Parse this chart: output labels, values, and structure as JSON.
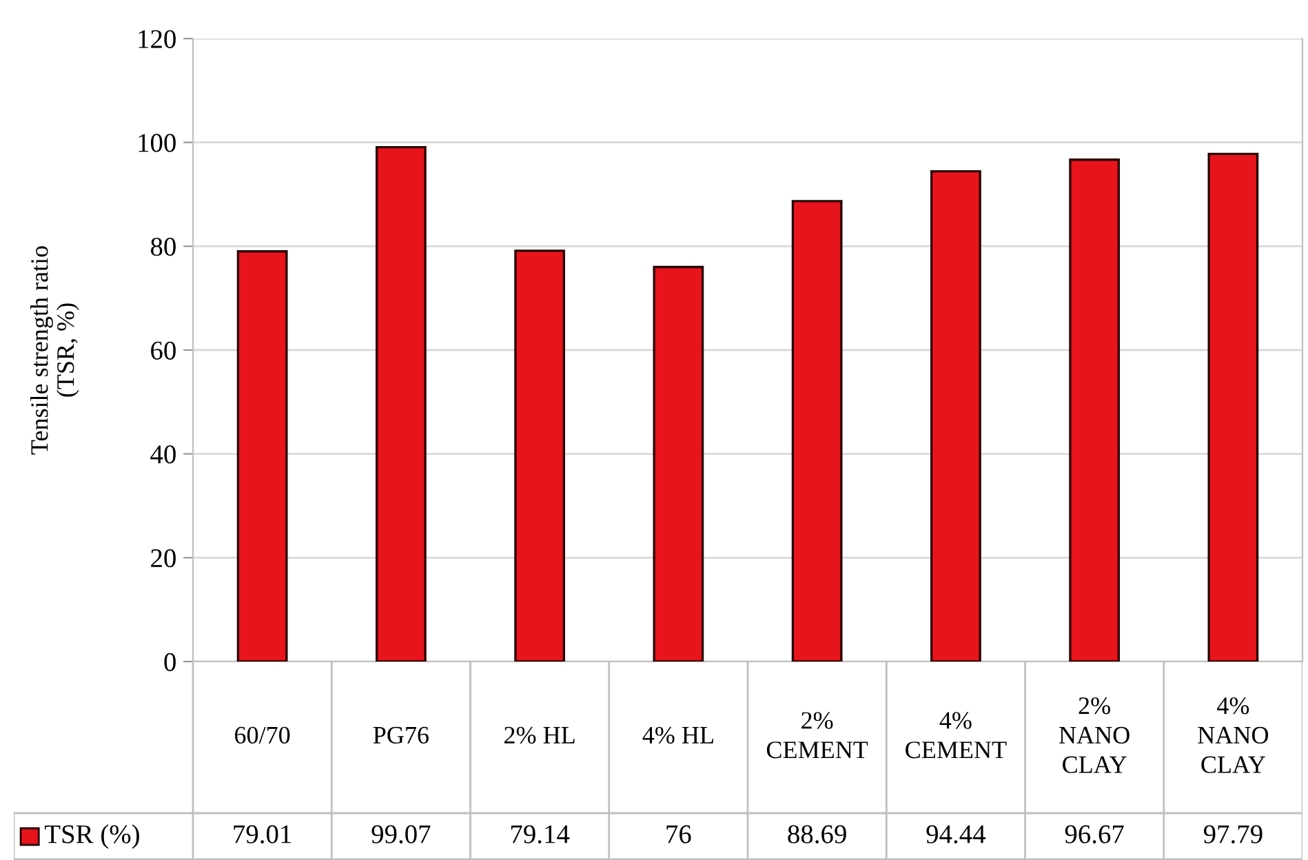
{
  "chart_data": {
    "type": "bar",
    "ylabel": "Tensile strength ratio\n(TSR, %)",
    "categories": [
      "60/70",
      "PG76",
      "2% HL",
      "4% HL",
      "2% CEMENT",
      "4% CEMENT",
      "2% NANO CLAY",
      "4% NANO CLAY"
    ],
    "series": [
      {
        "name": "TSR (%)",
        "color": "#e8141c",
        "values": [
          79.01,
          99.07,
          79.14,
          76,
          88.69,
          94.44,
          96.67,
          97.79
        ]
      }
    ],
    "ylim": [
      0,
      120
    ],
    "yticks": [
      0,
      20,
      40,
      60,
      80,
      100,
      120
    ],
    "grid": "y",
    "legend": "bottom",
    "data_labels": true
  }
}
